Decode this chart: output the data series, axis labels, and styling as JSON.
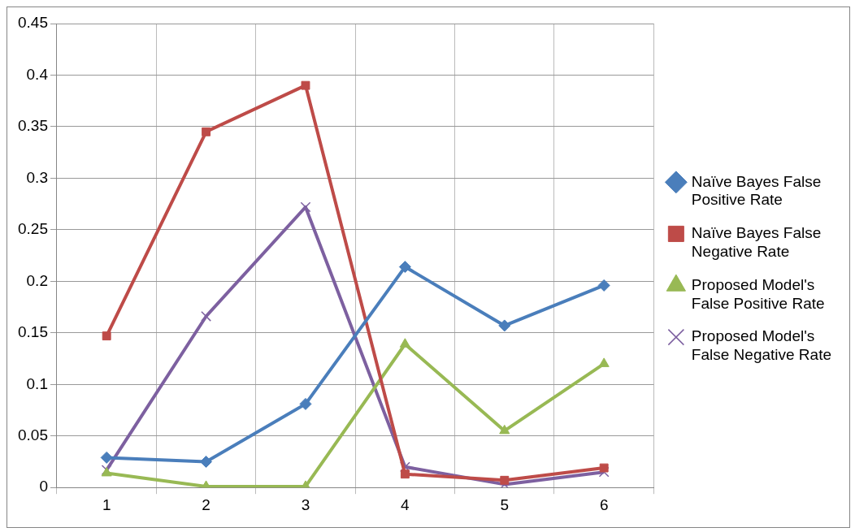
{
  "chart_data": {
    "type": "line",
    "categories": [
      "1",
      "2",
      "3",
      "4",
      "5",
      "6"
    ],
    "series": [
      {
        "name": "Naïve Bayes False Positive Rate",
        "color": "#4a7ebb",
        "marker": "diamond",
        "values": [
          0.029,
          0.025,
          0.081,
          0.214,
          0.157,
          0.196
        ]
      },
      {
        "name": "Naïve Bayes False Negative Rate",
        "color": "#be4b48",
        "marker": "square",
        "values": [
          0.147,
          0.345,
          0.39,
          0.013,
          0.007,
          0.019
        ]
      },
      {
        "name": "Proposed Model's False Positive Rate",
        "color": "#98b954",
        "marker": "triangle",
        "values": [
          0.014,
          0.001,
          0.001,
          0.139,
          0.055,
          0.12
        ]
      },
      {
        "name": "Proposed Model's False Negative Rate",
        "color": "#7d60a0",
        "marker": "cross",
        "values": [
          0.017,
          0.166,
          0.272,
          0.02,
          0.003,
          0.015
        ]
      }
    ],
    "ylim": [
      0,
      0.45
    ],
    "yticks": [
      0,
      0.05,
      0.1,
      0.15,
      0.2,
      0.25,
      0.3,
      0.35,
      0.4,
      0.45
    ],
    "grid": true,
    "legend": "right"
  }
}
